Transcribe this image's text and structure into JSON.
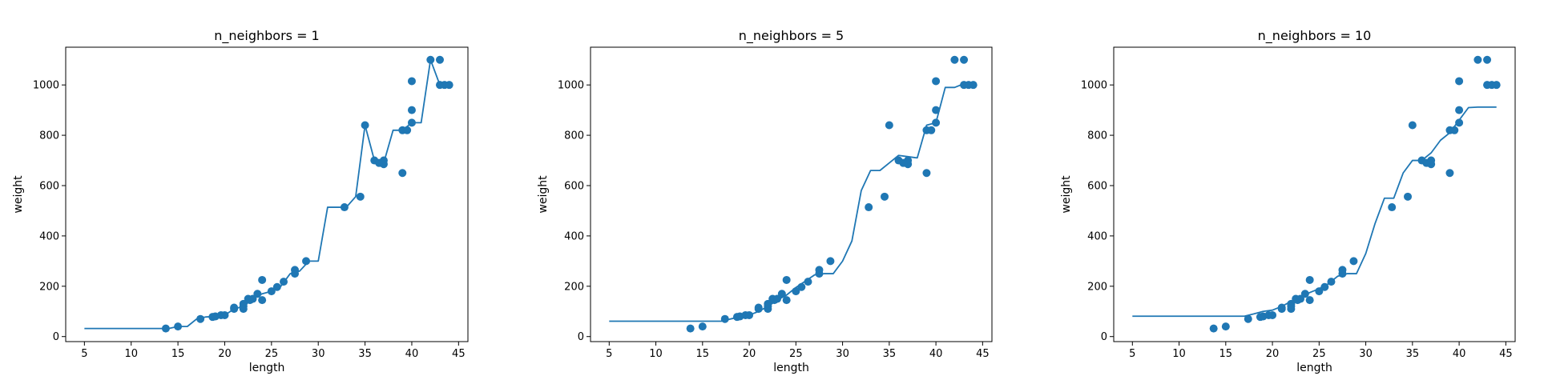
{
  "figure": {
    "background": "#ffffff",
    "mark_color": "#1f77b4"
  },
  "chart_data": [
    {
      "type": "scatter",
      "title": "n_neighbors = 1",
      "xlabel": "length",
      "ylabel": "weight",
      "xlim": [
        3,
        46
      ],
      "ylim": [
        -20,
        1150
      ],
      "xticks": [
        5,
        10,
        15,
        20,
        25,
        30,
        35,
        40,
        45
      ],
      "yticks": [
        0,
        200,
        400,
        600,
        800,
        1000
      ],
      "points": {
        "x": [
          13.7,
          15.0,
          17.4,
          18.7,
          19.0,
          19.6,
          20.0,
          21.0,
          21.0,
          22.0,
          22.0,
          22.0,
          22.5,
          22.7,
          23.0,
          23.5,
          24.0,
          24.0,
          25.0,
          25.6,
          26.3,
          27.5,
          27.5,
          28.7,
          32.8,
          34.5,
          35.0,
          36.0,
          37.0,
          37.0,
          36.5,
          39.0,
          39.0,
          39.5,
          40.0,
          40.0,
          40.0,
          42.0,
          43.0,
          43.0,
          43.5,
          44.0
        ],
        "y": [
          32,
          40,
          70,
          78,
          80,
          85,
          85,
          110,
          115,
          110,
          130,
          120,
          150,
          145,
          150,
          170,
          225,
          145,
          180,
          197,
          218,
          250,
          265,
          300,
          514,
          556,
          840,
          700,
          685,
          700,
          690,
          650,
          820,
          820,
          850,
          900,
          1015,
          1100,
          1100,
          1000,
          1000,
          1000
        ]
      },
      "prediction": {
        "x": [
          5,
          6,
          7,
          8,
          9,
          10,
          11,
          12,
          13,
          14,
          15,
          16,
          17,
          18,
          19,
          20,
          21,
          22,
          23,
          24,
          25,
          26,
          27,
          28,
          29,
          30,
          31,
          32,
          33,
          34,
          35,
          36,
          37,
          38,
          39,
          40,
          41,
          42,
          43,
          44
        ],
        "y": [
          32,
          32,
          32,
          32,
          32,
          32,
          32,
          32,
          32,
          32,
          40,
          40,
          70,
          78,
          80,
          85,
          110,
          120,
          150,
          170,
          180,
          200,
          250,
          260,
          300,
          300,
          514,
          514,
          514,
          556,
          840,
          700,
          690,
          820,
          820,
          850,
          850,
          1100,
          1000,
          1000
        ]
      }
    },
    {
      "type": "scatter",
      "title": "n_neighbors = 5",
      "xlabel": "length",
      "ylabel": "weight",
      "xlim": [
        3,
        46
      ],
      "ylim": [
        -20,
        1150
      ],
      "xticks": [
        5,
        10,
        15,
        20,
        25,
        30,
        35,
        40,
        45
      ],
      "yticks": [
        0,
        200,
        400,
        600,
        800,
        1000
      ],
      "points": {
        "x": [
          13.7,
          15.0,
          17.4,
          18.7,
          19.0,
          19.6,
          20.0,
          21.0,
          21.0,
          22.0,
          22.0,
          22.0,
          22.5,
          22.7,
          23.0,
          23.5,
          24.0,
          24.0,
          25.0,
          25.6,
          26.3,
          27.5,
          27.5,
          28.7,
          32.8,
          34.5,
          35.0,
          36.0,
          37.0,
          37.0,
          36.5,
          39.0,
          39.0,
          39.5,
          40.0,
          40.0,
          40.0,
          42.0,
          43.0,
          43.0,
          43.5,
          44.0
        ],
        "y": [
          32,
          40,
          70,
          78,
          80,
          85,
          85,
          110,
          115,
          110,
          130,
          120,
          150,
          145,
          150,
          170,
          225,
          145,
          180,
          197,
          218,
          250,
          265,
          300,
          514,
          556,
          840,
          700,
          685,
          700,
          690,
          650,
          820,
          820,
          850,
          900,
          1015,
          1100,
          1100,
          1000,
          1000,
          1000
        ]
      },
      "prediction": {
        "x": [
          5,
          6,
          7,
          8,
          9,
          10,
          11,
          12,
          13,
          14,
          15,
          16,
          17,
          18,
          19,
          20,
          21,
          22,
          23,
          24,
          25,
          26,
          27,
          28,
          29,
          30,
          31,
          32,
          33,
          34,
          35,
          36,
          37,
          38,
          39,
          40,
          41,
          42,
          43,
          44
        ],
        "y": [
          61,
          61,
          61,
          61,
          61,
          61,
          61,
          61,
          61,
          61,
          61,
          61,
          61,
          70,
          78,
          85,
          100,
          120,
          145,
          165,
          195,
          220,
          245,
          250,
          250,
          300,
          380,
          580,
          660,
          660,
          690,
          720,
          715,
          710,
          840,
          850,
          990,
          990,
          1005,
          1010
        ]
      }
    },
    {
      "type": "scatter",
      "title": "n_neighbors = 10",
      "xlabel": "length",
      "ylabel": "weight",
      "xlim": [
        3,
        46
      ],
      "ylim": [
        -20,
        1150
      ],
      "xticks": [
        5,
        10,
        15,
        20,
        25,
        30,
        35,
        40,
        45
      ],
      "yticks": [
        0,
        200,
        400,
        600,
        800,
        1000
      ],
      "points": {
        "x": [
          13.7,
          15.0,
          17.4,
          18.7,
          19.0,
          19.6,
          20.0,
          21.0,
          21.0,
          22.0,
          22.0,
          22.0,
          22.5,
          22.7,
          23.0,
          23.5,
          24.0,
          24.0,
          25.0,
          25.6,
          26.3,
          27.5,
          27.5,
          28.7,
          32.8,
          34.5,
          35.0,
          36.0,
          37.0,
          37.0,
          36.5,
          39.0,
          39.0,
          39.5,
          40.0,
          40.0,
          40.0,
          42.0,
          43.0,
          43.0,
          43.5,
          44.0
        ],
        "y": [
          32,
          40,
          70,
          78,
          80,
          85,
          85,
          110,
          115,
          110,
          130,
          120,
          150,
          145,
          150,
          170,
          225,
          145,
          180,
          197,
          218,
          250,
          265,
          300,
          514,
          556,
          840,
          700,
          685,
          700,
          690,
          650,
          820,
          820,
          850,
          900,
          1015,
          1100,
          1100,
          1000,
          1000,
          1000
        ]
      },
      "prediction": {
        "x": [
          5,
          6,
          7,
          8,
          9,
          10,
          11,
          12,
          13,
          14,
          15,
          16,
          17,
          18,
          19,
          20,
          21,
          22,
          23,
          24,
          25,
          26,
          27,
          28,
          29,
          30,
          31,
          32,
          33,
          34,
          35,
          36,
          37,
          38,
          39,
          40,
          41,
          42,
          43,
          44
        ],
        "y": [
          81,
          81,
          81,
          81,
          81,
          81,
          81,
          81,
          81,
          81,
          81,
          81,
          81,
          90,
          100,
          105,
          120,
          140,
          155,
          175,
          190,
          210,
          240,
          250,
          250,
          330,
          450,
          550,
          550,
          650,
          700,
          700,
          730,
          780,
          810,
          860,
          910,
          912,
          912,
          912
        ]
      }
    }
  ]
}
